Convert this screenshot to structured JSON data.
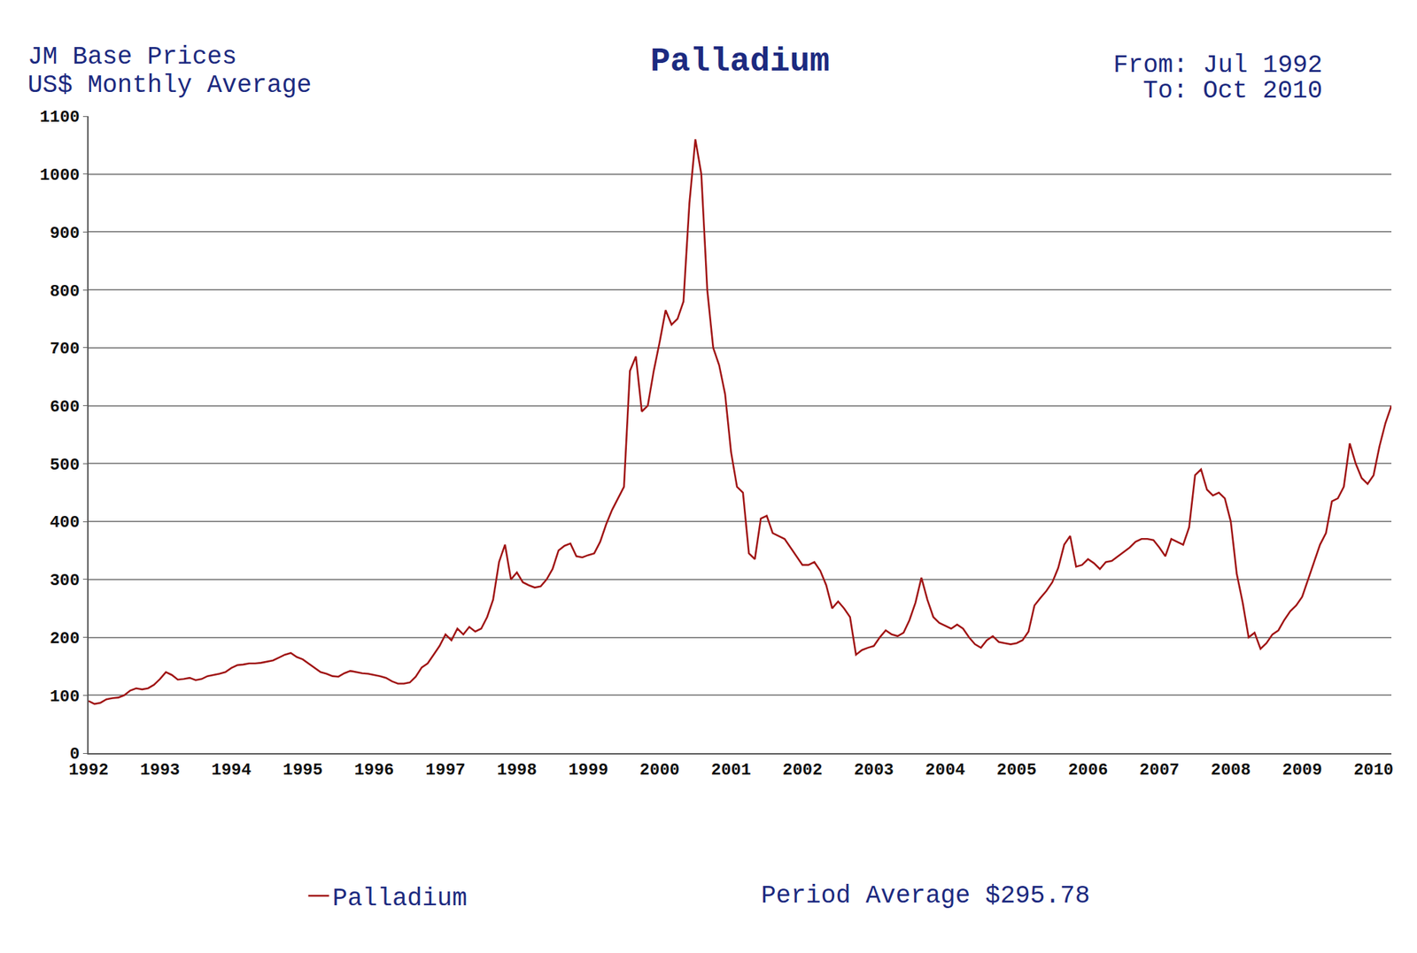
{
  "chart_data": {
    "type": "line",
    "title": "Palladium",
    "annotations": [
      "JM Base Prices",
      "US$ Monthly Average",
      "From: Jul 1992",
      "To: Oct 2010",
      "Period Average $295.78"
    ],
    "categories": [
      "1992",
      null,
      null,
      null,
      null,
      null,
      null,
      null,
      null,
      null,
      null,
      null,
      "1993",
      null,
      null,
      null,
      null,
      null,
      null,
      null,
      null,
      null,
      null,
      null,
      "1994",
      null,
      null,
      null,
      null,
      null,
      null,
      null,
      null,
      null,
      null,
      null,
      "1995",
      null,
      null,
      null,
      null,
      null,
      null,
      null,
      null,
      null,
      null,
      null,
      "1996",
      null,
      null,
      null,
      null,
      null,
      null,
      null,
      null,
      null,
      null,
      null,
      "1997",
      null,
      null,
      null,
      null,
      null,
      null,
      null,
      null,
      null,
      null,
      null,
      "1998",
      null,
      null,
      null,
      null,
      null,
      null,
      null,
      null,
      null,
      null,
      null,
      "1999",
      null,
      null,
      null,
      null,
      null,
      null,
      null,
      null,
      null,
      null,
      null,
      "2000",
      null,
      null,
      null,
      null,
      null,
      null,
      null,
      null,
      null,
      null,
      null,
      "2001",
      null,
      null,
      null,
      null,
      null,
      null,
      null,
      null,
      null,
      null,
      null,
      "2002",
      null,
      null,
      null,
      null,
      null,
      null,
      null,
      null,
      null,
      null,
      null,
      "2003",
      null,
      null,
      null,
      null,
      null,
      null,
      null,
      null,
      null,
      null,
      null,
      "2004",
      null,
      null,
      null,
      null,
      null,
      null,
      null,
      null,
      null,
      null,
      null,
      "2005",
      null,
      null,
      null,
      null,
      null,
      null,
      null,
      null,
      null,
      null,
      null,
      "2006",
      null,
      null,
      null,
      null,
      null,
      null,
      null,
      null,
      null,
      null,
      null,
      "2007",
      null,
      null,
      null,
      null,
      null,
      null,
      null,
      null,
      null,
      null,
      null,
      "2008",
      null,
      null,
      null,
      null,
      null,
      null,
      null,
      null,
      null,
      null,
      null,
      "2009",
      null,
      null,
      null,
      null,
      null,
      null,
      null,
      null,
      null,
      null,
      null,
      "2010",
      null,
      null,
      null
    ],
    "series": [
      {
        "name": "Palladium",
        "color": "#a01414",
        "values": [
          90,
          85,
          87,
          93,
          95,
          96,
          100,
          108,
          112,
          110,
          112,
          118,
          128,
          140,
          135,
          127,
          128,
          130,
          126,
          128,
          133,
          135,
          137,
          140,
          147,
          152,
          153,
          155,
          155,
          156,
          158,
          160,
          165,
          170,
          173,
          166,
          162,
          155,
          148,
          140,
          137,
          133,
          132,
          138,
          142,
          140,
          138,
          137,
          135,
          133,
          130,
          124,
          120,
          120,
          122,
          132,
          148,
          155,
          170,
          185,
          205,
          195,
          215,
          205,
          218,
          210,
          215,
          235,
          265,
          330,
          360,
          300,
          312,
          295,
          290,
          286,
          288,
          300,
          318,
          350,
          358,
          362,
          340,
          338,
          342,
          345,
          365,
          395,
          420,
          440,
          460,
          660,
          685,
          590,
          600,
          660,
          710,
          765,
          740,
          750,
          780,
          950,
          1060,
          1000,
          800,
          700,
          670,
          620,
          520,
          460,
          450,
          345,
          335,
          405,
          410,
          380,
          375,
          370,
          355,
          340,
          325,
          325,
          330,
          315,
          290,
          250,
          262,
          250,
          235,
          170,
          178,
          182,
          185,
          200,
          212,
          205,
          202,
          208,
          230,
          260,
          303,
          265,
          235,
          225,
          220,
          215,
          222,
          215,
          200,
          188,
          182,
          195,
          202,
          192,
          190,
          188,
          190,
          195,
          210,
          255,
          268,
          280,
          295,
          320,
          360,
          375,
          322,
          325,
          335,
          328,
          318,
          330,
          332,
          340,
          348,
          355,
          365,
          370,
          370,
          368,
          355,
          340,
          370,
          365,
          360,
          390,
          480,
          490,
          455,
          445,
          450,
          440,
          400,
          310,
          260,
          200,
          208,
          180,
          190,
          205,
          212,
          230,
          245,
          255,
          270,
          300,
          330,
          360,
          380,
          435,
          440,
          460,
          535,
          500,
          475,
          465,
          480,
          530,
          570,
          600
        ]
      }
    ],
    "ylim": [
      0,
      1100
    ],
    "yticks": [
      0,
      100,
      200,
      300,
      400,
      500,
      600,
      700,
      800,
      900,
      1000,
      1100
    ],
    "grid": true,
    "legend": "bottom left"
  }
}
